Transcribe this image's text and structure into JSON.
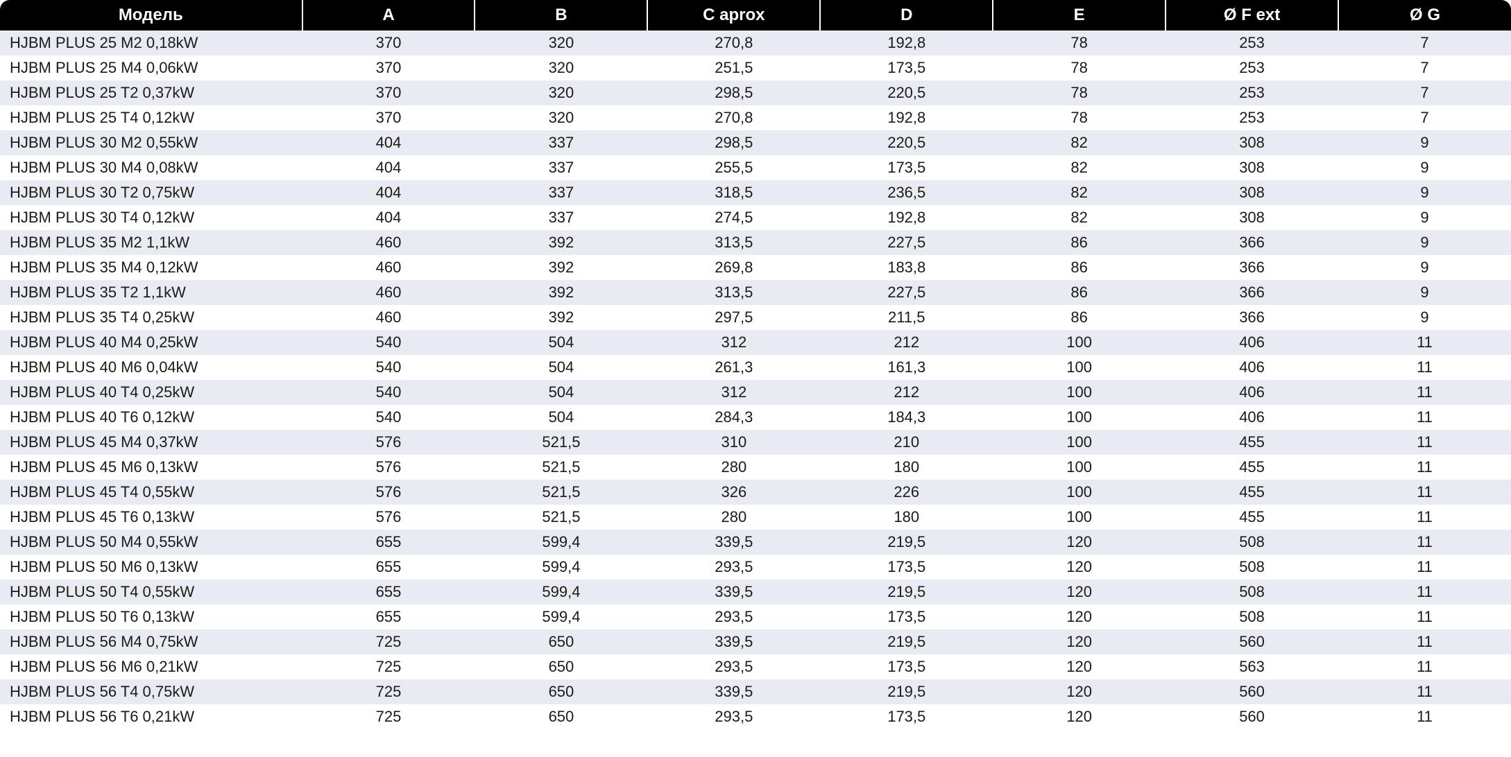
{
  "table": {
    "header_bg": "#000000",
    "header_fg": "#ffffff",
    "row_odd_bg": "#e8ecf2",
    "row_even_bg": "#ffffff",
    "text_color": "#1a1a1a",
    "font_family": "Myriad Pro / Segoe UI / Arial",
    "header_fontsize_pt": 18,
    "cell_fontsize_pt": 16,
    "columns": [
      {
        "key": "model",
        "label": "Модель",
        "align": "left",
        "width_pct": 20
      },
      {
        "key": "a",
        "label": "A",
        "align": "center",
        "width_pct": 11.43
      },
      {
        "key": "b",
        "label": "B",
        "align": "center",
        "width_pct": 11.43
      },
      {
        "key": "c",
        "label": "C  aprox",
        "align": "center",
        "width_pct": 11.43
      },
      {
        "key": "d",
        "label": "D",
        "align": "center",
        "width_pct": 11.43
      },
      {
        "key": "e",
        "label": "E",
        "align": "center",
        "width_pct": 11.43
      },
      {
        "key": "f",
        "label": "Ø F ext",
        "align": "center",
        "width_pct": 11.43
      },
      {
        "key": "g",
        "label": "Ø G",
        "align": "center",
        "width_pct": 11.43
      }
    ],
    "rows": [
      {
        "model": "HJBM PLUS 25 M2 0,18kW",
        "a": "370",
        "b": "320",
        "c": "270,8",
        "d": "192,8",
        "e": "78",
        "f": "253",
        "g": "7"
      },
      {
        "model": "HJBM PLUS 25 M4 0,06kW",
        "a": "370",
        "b": "320",
        "c": "251,5",
        "d": "173,5",
        "e": "78",
        "f": "253",
        "g": "7"
      },
      {
        "model": "HJBM PLUS 25 T2 0,37kW",
        "a": "370",
        "b": "320",
        "c": "298,5",
        "d": "220,5",
        "e": "78",
        "f": "253",
        "g": "7"
      },
      {
        "model": "HJBM PLUS 25 T4 0,12kW",
        "a": "370",
        "b": "320",
        "c": "270,8",
        "d": "192,8",
        "e": "78",
        "f": "253",
        "g": "7"
      },
      {
        "model": "HJBM PLUS 30 M2 0,55kW",
        "a": "404",
        "b": "337",
        "c": "298,5",
        "d": "220,5",
        "e": "82",
        "f": "308",
        "g": "9"
      },
      {
        "model": "HJBM PLUS 30 M4 0,08kW",
        "a": "404",
        "b": "337",
        "c": "255,5",
        "d": "173,5",
        "e": "82",
        "f": "308",
        "g": "9"
      },
      {
        "model": "HJBM PLUS 30 T2 0,75kW",
        "a": "404",
        "b": "337",
        "c": "318,5",
        "d": "236,5",
        "e": "82",
        "f": "308",
        "g": "9"
      },
      {
        "model": "HJBM PLUS 30 T4 0,12kW",
        "a": "404",
        "b": "337",
        "c": "274,5",
        "d": "192,8",
        "e": "82",
        "f": "308",
        "g": "9"
      },
      {
        "model": "HJBM PLUS 35 M2 1,1kW",
        "a": "460",
        "b": "392",
        "c": "313,5",
        "d": "227,5",
        "e": "86",
        "f": "366",
        "g": "9"
      },
      {
        "model": "HJBM PLUS 35 M4 0,12kW",
        "a": "460",
        "b": "392",
        "c": "269,8",
        "d": "183,8",
        "e": "86",
        "f": "366",
        "g": "9"
      },
      {
        "model": "HJBM PLUS 35 T2 1,1kW",
        "a": "460",
        "b": "392",
        "c": "313,5",
        "d": "227,5",
        "e": "86",
        "f": "366",
        "g": "9"
      },
      {
        "model": "HJBM PLUS 35 T4 0,25kW",
        "a": "460",
        "b": "392",
        "c": "297,5",
        "d": "211,5",
        "e": "86",
        "f": "366",
        "g": "9"
      },
      {
        "model": "HJBM PLUS 40 M4 0,25kW",
        "a": "540",
        "b": "504",
        "c": "312",
        "d": "212",
        "e": "100",
        "f": "406",
        "g": "11"
      },
      {
        "model": "HJBM PLUS 40 M6 0,04kW",
        "a": "540",
        "b": "504",
        "c": "261,3",
        "d": "161,3",
        "e": "100",
        "f": "406",
        "g": "11"
      },
      {
        "model": "HJBM PLUS 40 T4 0,25kW",
        "a": "540",
        "b": "504",
        "c": "312",
        "d": "212",
        "e": "100",
        "f": "406",
        "g": "11"
      },
      {
        "model": "HJBM PLUS 40 T6 0,12kW",
        "a": "540",
        "b": "504",
        "c": "284,3",
        "d": "184,3",
        "e": "100",
        "f": "406",
        "g": "11"
      },
      {
        "model": "HJBM PLUS 45 M4 0,37kW",
        "a": "576",
        "b": "521,5",
        "c": "310",
        "d": "210",
        "e": "100",
        "f": "455",
        "g": "11"
      },
      {
        "model": "HJBM PLUS 45 M6 0,13kW",
        "a": "576",
        "b": "521,5",
        "c": "280",
        "d": "180",
        "e": "100",
        "f": "455",
        "g": "11"
      },
      {
        "model": "HJBM PLUS 45 T4 0,55kW",
        "a": "576",
        "b": "521,5",
        "c": "326",
        "d": "226",
        "e": "100",
        "f": "455",
        "g": "11"
      },
      {
        "model": "HJBM PLUS 45 T6 0,13kW",
        "a": "576",
        "b": "521,5",
        "c": "280",
        "d": "180",
        "e": "100",
        "f": "455",
        "g": "11"
      },
      {
        "model": "HJBM PLUS 50 M4 0,55kW",
        "a": "655",
        "b": "599,4",
        "c": "339,5",
        "d": "219,5",
        "e": "120",
        "f": "508",
        "g": "11"
      },
      {
        "model": "HJBM PLUS 50 M6 0,13kW",
        "a": "655",
        "b": "599,4",
        "c": "293,5",
        "d": "173,5",
        "e": "120",
        "f": "508",
        "g": "11"
      },
      {
        "model": "HJBM PLUS 50 T4 0,55kW",
        "a": "655",
        "b": "599,4",
        "c": "339,5",
        "d": "219,5",
        "e": "120",
        "f": "508",
        "g": "11"
      },
      {
        "model": "HJBM PLUS 50 T6 0,13kW",
        "a": "655",
        "b": "599,4",
        "c": "293,5",
        "d": "173,5",
        "e": "120",
        "f": "508",
        "g": "11"
      },
      {
        "model": "HJBM PLUS 56 M4 0,75kW",
        "a": "725",
        "b": "650",
        "c": "339,5",
        "d": "219,5",
        "e": "120",
        "f": "560",
        "g": "11"
      },
      {
        "model": "HJBM PLUS 56 M6 0,21kW",
        "a": "725",
        "b": "650",
        "c": "293,5",
        "d": "173,5",
        "e": "120",
        "f": "563",
        "g": "11"
      },
      {
        "model": "HJBM PLUS 56 T4 0,75kW",
        "a": "725",
        "b": "650",
        "c": "339,5",
        "d": "219,5",
        "e": "120",
        "f": "560",
        "g": "11"
      },
      {
        "model": "HJBM PLUS 56 T6 0,21kW",
        "a": "725",
        "b": "650",
        "c": "293,5",
        "d": "173,5",
        "e": "120",
        "f": "560",
        "g": "11"
      }
    ]
  }
}
